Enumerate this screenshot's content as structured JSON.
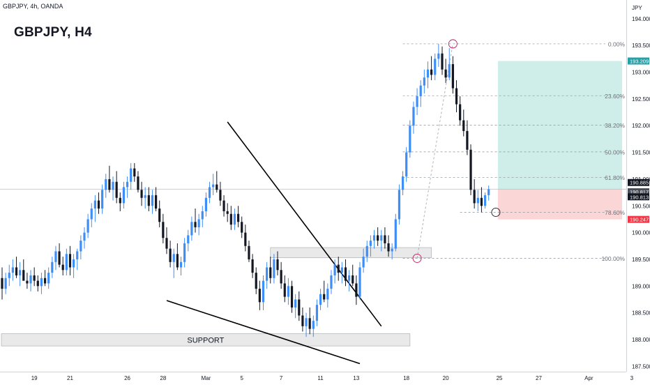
{
  "header": {
    "symbol_line": "GBPJPY, 4h, OANDA",
    "title": "GBPJPY, H4",
    "currency": "JPY"
  },
  "colors": {
    "up": "#3e8ef7",
    "down": "#131722",
    "target_zone": "#cfeeea",
    "stop_zone": "#fbd6d6",
    "fib_line": "#9aa0a6",
    "zone_box": "#e9e9e9",
    "last_price_tag": "#131722",
    "target_tag": "#22a2a8",
    "stop_tag": "#f23645"
  },
  "chart_data": {
    "type": "candlestick",
    "title": "GBPJPY, H4",
    "ylim": [
      187.4,
      194.35
    ],
    "y_ticks": [
      "194.000",
      "193.500",
      "193.000",
      "192.500",
      "192.000",
      "191.500",
      "191.000",
      "190.500",
      "190.000",
      "189.500",
      "189.000",
      "188.500",
      "188.000",
      "187.500"
    ],
    "y_tick_values": [
      194.0,
      193.5,
      193.0,
      192.5,
      192.0,
      191.5,
      191.0,
      190.5,
      190.0,
      189.5,
      189.0,
      188.5,
      188.0,
      187.5
    ],
    "x_ticks": [
      "19",
      "21",
      "26",
      "28",
      "Mar",
      "5",
      "7",
      "11",
      "13",
      "18",
      "20",
      "25",
      "27",
      "Apr",
      "3"
    ],
    "x_tick_bar_index": [
      9,
      19,
      35,
      45,
      57,
      67,
      78,
      89,
      99,
      113,
      124,
      139,
      150,
      164,
      176
    ],
    "fib_levels": [
      {
        "label": "0.00%",
        "price": 193.53
      },
      {
        "label": "23.60%",
        "price": 192.56
      },
      {
        "label": "38.20%",
        "price": 192.01
      },
      {
        "label": "50.00%",
        "price": 191.51
      },
      {
        "label": "61.80%",
        "price": 191.03
      },
      {
        "label": "78.60%",
        "price": 190.38
      },
      {
        "label": "100.00%",
        "price": 189.52
      }
    ],
    "price_labels": [
      "193.209",
      "190.885",
      "190.817",
      "190.813",
      "190.247"
    ],
    "price_label_values": [
      193.209,
      190.885,
      190.817,
      190.813,
      190.247
    ],
    "current_price": 190.813,
    "target_price": 193.209,
    "stop_price": 190.247,
    "entry_price": 190.813,
    "annotations": [
      "SUPPORT"
    ],
    "support_zone": [
      187.88,
      188.11
    ],
    "breakout_zone": [
      189.53,
      189.72
    ],
    "wedge_upper_line": [
      [
        63,
        192.07
      ],
      [
        106,
        188.25
      ]
    ],
    "wedge_lower_line": [
      [
        46,
        188.73
      ],
      [
        100,
        187.55
      ]
    ],
    "swing_markers": [
      [
        126,
        193.53
      ],
      [
        116,
        189.52
      ],
      [
        138,
        190.38
      ]
    ],
    "candles": [
      [
        189.15,
        189.35,
        188.75,
        188.95
      ],
      [
        188.95,
        189.25,
        188.85,
        189.15
      ],
      [
        189.15,
        189.4,
        189.0,
        189.25
      ],
      [
        189.25,
        189.5,
        189.1,
        189.35
      ],
      [
        189.35,
        189.55,
        189.15,
        189.2
      ],
      [
        189.2,
        189.45,
        189.0,
        189.3
      ],
      [
        189.3,
        189.5,
        189.1,
        189.1
      ],
      [
        189.1,
        189.25,
        188.95,
        189.05
      ],
      [
        189.05,
        189.3,
        188.9,
        189.2
      ],
      [
        189.2,
        189.35,
        189.0,
        189.1
      ],
      [
        189.1,
        189.2,
        188.9,
        189.0
      ],
      [
        189.0,
        189.25,
        188.85,
        189.15
      ],
      [
        189.15,
        189.3,
        189.0,
        189.05
      ],
      [
        189.05,
        189.35,
        188.95,
        189.25
      ],
      [
        189.25,
        189.55,
        189.15,
        189.45
      ],
      [
        189.45,
        189.75,
        189.3,
        189.65
      ],
      [
        189.65,
        189.8,
        189.35,
        189.4
      ],
      [
        189.4,
        189.55,
        189.2,
        189.3
      ],
      [
        189.3,
        189.7,
        189.2,
        189.6
      ],
      [
        189.6,
        189.75,
        189.2,
        189.35
      ],
      [
        189.35,
        189.6,
        189.15,
        189.5
      ],
      [
        189.5,
        189.7,
        189.3,
        189.65
      ],
      [
        189.65,
        189.95,
        189.5,
        189.85
      ],
      [
        189.85,
        190.1,
        189.7,
        190.0
      ],
      [
        190.0,
        190.35,
        189.9,
        190.25
      ],
      [
        190.25,
        190.55,
        190.1,
        190.45
      ],
      [
        190.45,
        190.7,
        190.2,
        190.6
      ],
      [
        190.6,
        190.75,
        190.35,
        190.45
      ],
      [
        190.45,
        190.9,
        190.35,
        190.8
      ],
      [
        190.8,
        191.1,
        190.65,
        191.0
      ],
      [
        191.0,
        191.25,
        190.75,
        190.8
      ],
      [
        190.8,
        191.05,
        190.6,
        190.95
      ],
      [
        190.95,
        191.15,
        190.55,
        190.65
      ],
      [
        190.65,
        190.75,
        190.4,
        190.55
      ],
      [
        190.55,
        190.95,
        190.45,
        190.85
      ],
      [
        190.85,
        191.05,
        190.65,
        190.95
      ],
      [
        190.95,
        191.3,
        190.8,
        191.2
      ],
      [
        191.2,
        191.3,
        190.95,
        191.05
      ],
      [
        191.05,
        191.15,
        190.75,
        190.8
      ],
      [
        190.8,
        190.95,
        190.5,
        190.65
      ],
      [
        190.65,
        190.85,
        190.45,
        190.7
      ],
      [
        190.7,
        190.85,
        190.4,
        190.5
      ],
      [
        190.5,
        190.8,
        190.35,
        190.7
      ],
      [
        190.7,
        190.85,
        190.4,
        190.45
      ],
      [
        190.45,
        190.6,
        190.1,
        190.2
      ],
      [
        190.2,
        190.35,
        189.8,
        189.9
      ],
      [
        189.9,
        190.1,
        189.6,
        189.7
      ],
      [
        189.7,
        189.85,
        189.35,
        189.45
      ],
      [
        189.45,
        189.7,
        189.15,
        189.6
      ],
      [
        189.6,
        189.8,
        189.3,
        189.35
      ],
      [
        189.35,
        189.55,
        189.2,
        189.45
      ],
      [
        189.45,
        189.9,
        189.35,
        189.8
      ],
      [
        189.8,
        190.05,
        189.65,
        189.95
      ],
      [
        189.95,
        190.3,
        189.85,
        190.2
      ],
      [
        190.2,
        190.45,
        190.0,
        190.1
      ],
      [
        190.1,
        190.35,
        189.95,
        190.25
      ],
      [
        190.25,
        190.5,
        190.1,
        190.4
      ],
      [
        190.4,
        190.75,
        190.3,
        190.65
      ],
      [
        190.65,
        190.95,
        190.55,
        190.85
      ],
      [
        190.85,
        191.1,
        190.7,
        190.9
      ],
      [
        190.9,
        191.15,
        190.75,
        190.8
      ],
      [
        190.8,
        190.95,
        190.5,
        190.6
      ],
      [
        190.6,
        190.7,
        190.3,
        190.4
      ],
      [
        190.4,
        190.55,
        190.2,
        190.35
      ],
      [
        190.35,
        190.5,
        190.05,
        190.15
      ],
      [
        190.15,
        190.45,
        190.05,
        190.35
      ],
      [
        190.35,
        190.5,
        190.1,
        190.2
      ],
      [
        190.2,
        190.3,
        189.9,
        190.0
      ],
      [
        190.0,
        190.15,
        189.65,
        189.75
      ],
      [
        189.75,
        189.85,
        189.45,
        189.5
      ],
      [
        189.5,
        189.6,
        189.15,
        189.25
      ],
      [
        189.25,
        189.35,
        188.85,
        188.95
      ],
      [
        188.95,
        189.1,
        188.55,
        188.7
      ],
      [
        188.7,
        189.2,
        188.55,
        189.1
      ],
      [
        189.1,
        189.45,
        188.95,
        189.35
      ],
      [
        189.35,
        189.55,
        189.05,
        189.15
      ],
      [
        189.15,
        189.6,
        189.05,
        189.5
      ],
      [
        189.5,
        189.65,
        189.2,
        189.3
      ],
      [
        189.3,
        189.45,
        188.95,
        189.05
      ],
      [
        189.05,
        189.2,
        188.7,
        188.8
      ],
      [
        188.8,
        189.15,
        188.65,
        189.0
      ],
      [
        189.0,
        189.1,
        188.5,
        188.6
      ],
      [
        188.6,
        188.85,
        188.4,
        188.75
      ],
      [
        188.75,
        188.9,
        188.35,
        188.45
      ],
      [
        188.45,
        188.6,
        188.15,
        188.25
      ],
      [
        188.25,
        188.5,
        188.05,
        188.4
      ],
      [
        188.4,
        188.6,
        188.1,
        188.2
      ],
      [
        188.2,
        188.45,
        188.05,
        188.35
      ],
      [
        188.35,
        188.75,
        188.25,
        188.65
      ],
      [
        188.65,
        188.95,
        188.55,
        188.85
      ],
      [
        188.85,
        189.1,
        188.7,
        188.75
      ],
      [
        188.75,
        189.05,
        188.6,
        188.95
      ],
      [
        188.95,
        189.3,
        188.85,
        189.2
      ],
      [
        189.2,
        189.5,
        189.05,
        189.4
      ],
      [
        189.4,
        189.55,
        189.1,
        189.25
      ],
      [
        189.25,
        189.45,
        189.05,
        189.35
      ],
      [
        189.35,
        189.5,
        189.0,
        189.1
      ],
      [
        189.1,
        189.3,
        188.9,
        189.2
      ],
      [
        189.2,
        189.4,
        189.0,
        189.05
      ],
      [
        189.05,
        189.2,
        188.65,
        188.8
      ],
      [
        188.8,
        189.45,
        188.75,
        189.35
      ],
      [
        189.35,
        189.7,
        189.25,
        189.55
      ],
      [
        189.55,
        189.85,
        189.45,
        189.75
      ],
      [
        189.75,
        189.95,
        189.55,
        189.85
      ],
      [
        189.85,
        190.05,
        189.7,
        189.95
      ],
      [
        189.95,
        190.1,
        189.75,
        189.85
      ],
      [
        189.85,
        190.05,
        189.65,
        189.95
      ],
      [
        189.95,
        190.1,
        189.7,
        189.8
      ],
      [
        189.8,
        189.95,
        189.55,
        189.65
      ],
      [
        189.65,
        189.8,
        189.5,
        189.7
      ],
      [
        189.7,
        190.35,
        189.65,
        190.25
      ],
      [
        190.25,
        190.9,
        190.15,
        190.8
      ],
      [
        190.8,
        191.15,
        190.7,
        191.05
      ],
      [
        191.05,
        191.6,
        190.95,
        191.5
      ],
      [
        191.5,
        192.1,
        191.4,
        192.0
      ],
      [
        192.0,
        192.45,
        191.85,
        192.35
      ],
      [
        192.35,
        192.7,
        192.2,
        192.55
      ],
      [
        192.55,
        192.85,
        192.35,
        192.75
      ],
      [
        192.75,
        193.05,
        192.6,
        192.9
      ],
      [
        192.9,
        193.2,
        192.7,
        193.05
      ],
      [
        193.05,
        193.3,
        192.85,
        192.95
      ],
      [
        192.95,
        193.35,
        192.85,
        193.25
      ],
      [
        193.25,
        193.53,
        193.1,
        193.35
      ],
      [
        193.35,
        193.48,
        192.95,
        193.05
      ],
      [
        193.05,
        193.25,
        192.8,
        192.9
      ],
      [
        192.9,
        193.45,
        192.85,
        193.15
      ],
      [
        193.15,
        193.3,
        192.6,
        192.7
      ],
      [
        192.7,
        192.85,
        192.25,
        192.4
      ],
      [
        192.4,
        192.55,
        192.0,
        192.1
      ],
      [
        192.1,
        192.3,
        191.8,
        191.9
      ],
      [
        191.9,
        192.1,
        191.45,
        191.55
      ],
      [
        191.55,
        191.65,
        190.7,
        190.8
      ],
      [
        190.8,
        191.0,
        190.45,
        190.55
      ],
      [
        190.55,
        190.8,
        190.4,
        190.65
      ],
      [
        190.65,
        190.85,
        190.38,
        190.5
      ],
      [
        190.5,
        190.75,
        190.45,
        190.7
      ],
      [
        190.7,
        190.88,
        190.6,
        190.81
      ]
    ]
  }
}
